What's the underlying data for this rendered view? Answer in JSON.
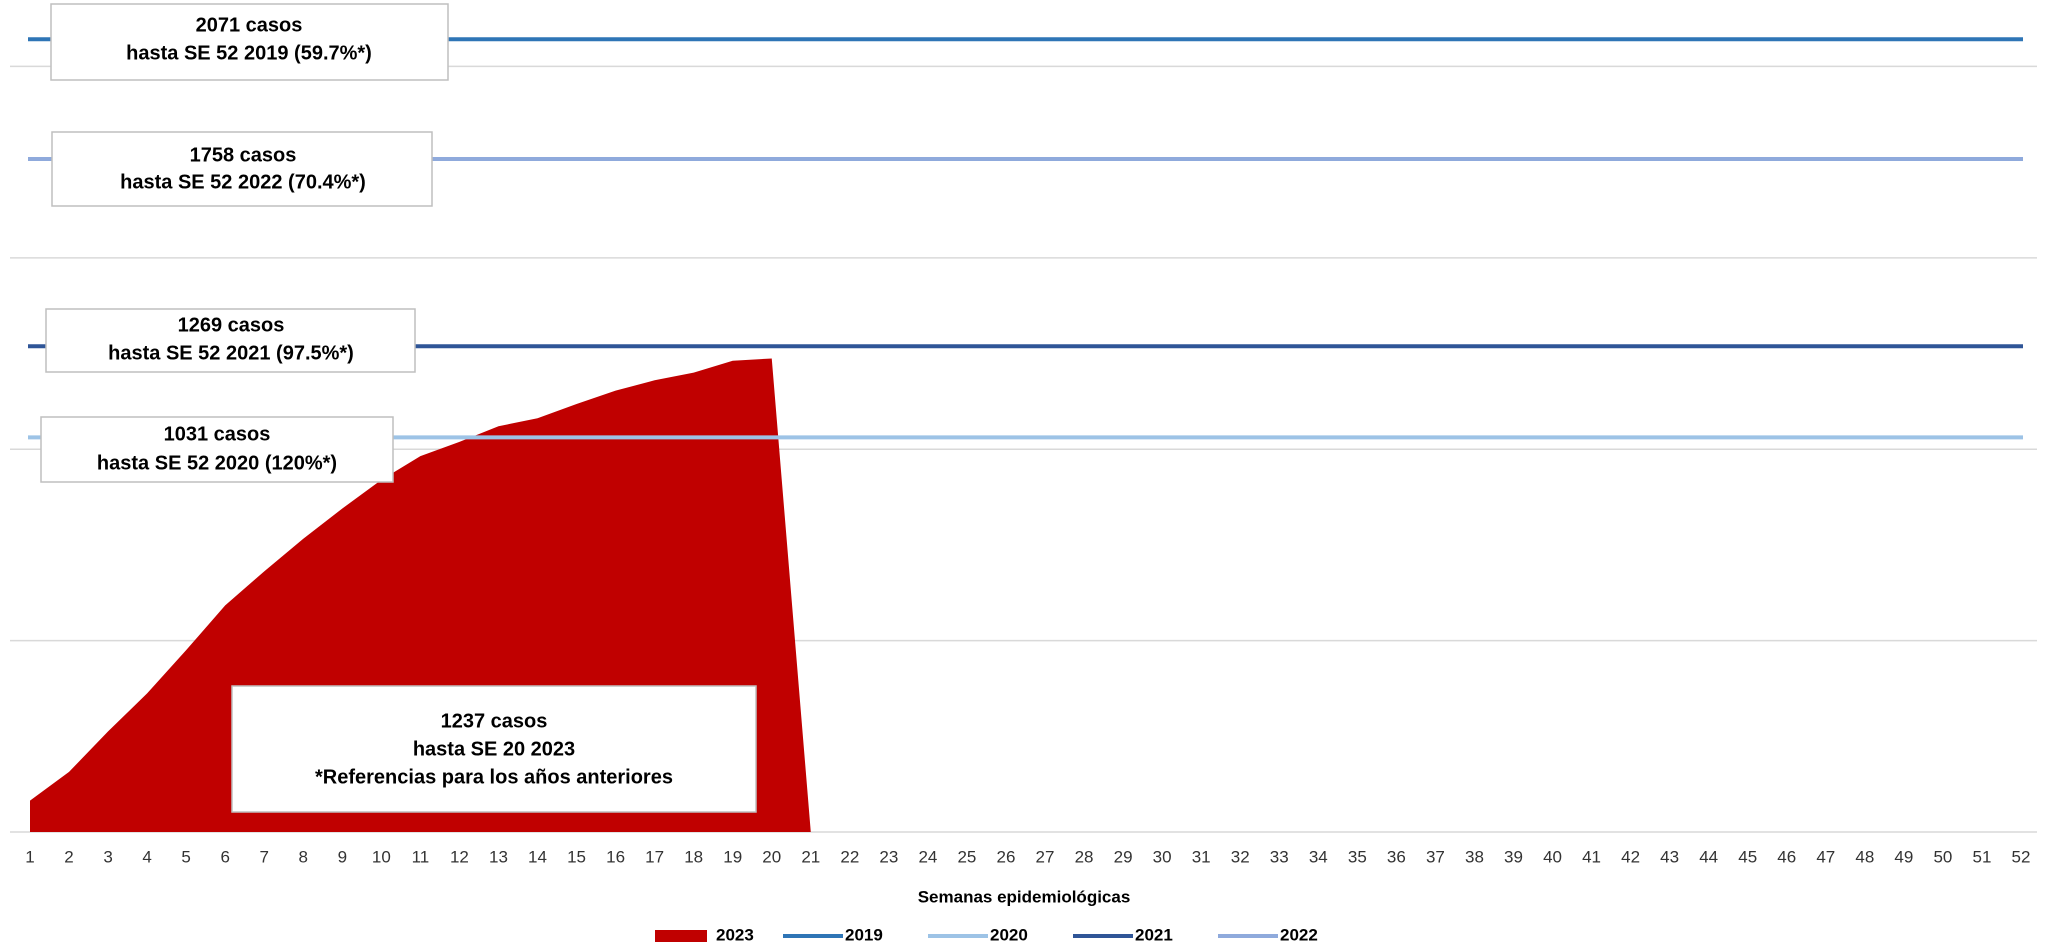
{
  "chart_data": {
    "type": "area",
    "x_label": "Semanas epidemiológicas",
    "categories": [
      "1",
      "2",
      "3",
      "4",
      "5",
      "6",
      "7",
      "8",
      "9",
      "10",
      "11",
      "12",
      "13",
      "14",
      "15",
      "16",
      "17",
      "18",
      "19",
      "20",
      "21",
      "22",
      "23",
      "24",
      "25",
      "26",
      "27",
      "28",
      "29",
      "30",
      "31",
      "32",
      "33",
      "34",
      "35",
      "36",
      "37",
      "38",
      "39",
      "40",
      "41",
      "42",
      "43",
      "44",
      "45",
      "46",
      "47",
      "48",
      "49",
      "50",
      "51",
      "52"
    ],
    "series": [
      {
        "name": "2023",
        "color": "#c00000",
        "values": [
          82,
          157,
          263,
          362,
          475,
          592,
          681,
          766,
          845,
          920,
          982,
          1019,
          1060,
          1081,
          1118,
          1153,
          1180,
          1200,
          1231,
          1237,
          0,
          null,
          null,
          null,
          null,
          null,
          null,
          null,
          null,
          null,
          null,
          null,
          null,
          null,
          null,
          null,
          null,
          null,
          null,
          null,
          null,
          null,
          null,
          null,
          null,
          null,
          null,
          null,
          null,
          null,
          null,
          null
        ]
      }
    ],
    "reference_lines": [
      {
        "name": "2019",
        "color": "#2e75b6",
        "value": 2071
      },
      {
        "name": "2020",
        "color": "#9dc3e6",
        "value": 1031
      },
      {
        "name": "2021",
        "color": "#2f5597",
        "value": 1269
      },
      {
        "name": "2022",
        "color": "#8faadc",
        "value": 1758
      }
    ],
    "ylim": [
      0,
      2150
    ],
    "yticks": [
      0,
      500,
      1000,
      1500,
      2000
    ],
    "grid": true,
    "annotations": [
      {
        "lines": [
          "2071 casos",
          "hasta SE 52 2019 (59.7%*)"
        ]
      },
      {
        "lines": [
          "1758 casos",
          "hasta SE 52 2022 (70.4%*)"
        ]
      },
      {
        "lines": [
          "1269 casos",
          "hasta SE 52 2021 (97.5%*)"
        ]
      },
      {
        "lines": [
          "1031 casos",
          "hasta SE 52 2020 (120%*)"
        ]
      },
      {
        "lines": [
          "1237 casos",
          "hasta SE 20 2023",
          "*Referencias para los años anteriores"
        ]
      }
    ]
  }
}
